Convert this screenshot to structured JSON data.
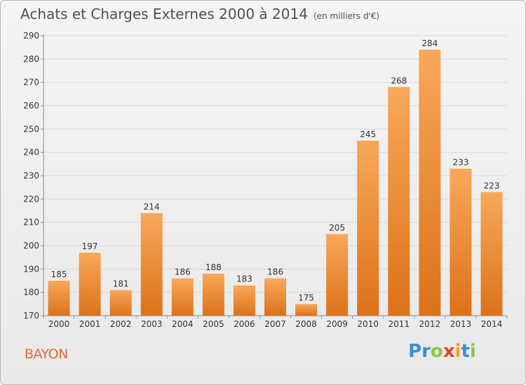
{
  "title": "Achats et Charges Externes 2000 à 2014",
  "subtitle": "(en milliers d'€)",
  "place": "BAYON",
  "logo": {
    "text": "Proxiti",
    "letters": [
      {
        "ch": "P",
        "color": "#3a8fd6"
      },
      {
        "ch": "r",
        "color": "#3a8fd6"
      },
      {
        "ch": "o",
        "color": "#8cc63f"
      },
      {
        "ch": "x",
        "color": "#e8432e"
      },
      {
        "ch": "i",
        "color": "#f4a11d"
      },
      {
        "ch": "t",
        "color": "#3a8fd6"
      },
      {
        "ch": "i",
        "color": "#8cc63f"
      }
    ]
  },
  "colors": {
    "bar_light": "#f8a85a",
    "bar_dark": "#dc7219",
    "grid": "#d8d8d8",
    "axis": "#8a8a8a",
    "text": "#333333"
  },
  "chart_data": {
    "type": "bar",
    "categories": [
      "2000",
      "2001",
      "2002",
      "2003",
      "2004",
      "2005",
      "2006",
      "2007",
      "2008",
      "2009",
      "2010",
      "2011",
      "2012",
      "2013",
      "2014"
    ],
    "values": [
      185,
      197,
      181,
      214,
      186,
      188,
      183,
      186,
      175,
      205,
      245,
      268,
      284,
      233,
      223
    ],
    "title": "Achats et Charges Externes 2000 à 2014",
    "xlabel": "",
    "ylabel": "",
    "ylim": [
      170,
      290
    ],
    "yticks": [
      170,
      180,
      190,
      200,
      210,
      220,
      230,
      240,
      250,
      260,
      270,
      280,
      290
    ],
    "grid": true,
    "data_labels": true
  }
}
